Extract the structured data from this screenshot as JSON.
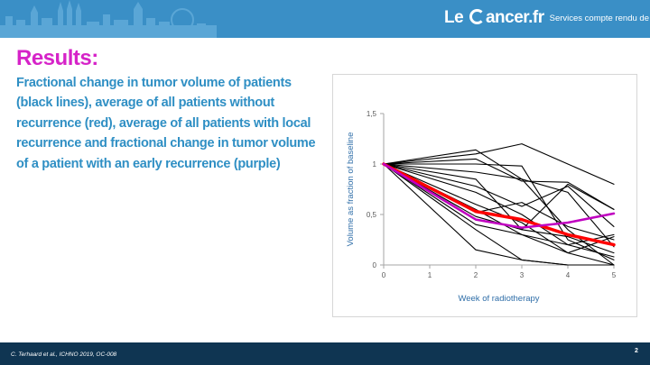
{
  "header": {
    "logo_left": "Le ",
    "logo_right": "ancer.fr",
    "tagline": "Services compte rendu de congrès",
    "accent_color": "#3a8fc6"
  },
  "slide": {
    "title": "Results:",
    "description": "Fractional change in tumor volume of patients (black lines), average of all patients without recurrence (red), average of all patients with local recurrence and fractional change in tumor volume of a patient with an early recurrence (purple)",
    "title_color": "#d623c8",
    "text_color": "#2f8fc4"
  },
  "footer": {
    "citation": "C. Terhaard et al., ICHNO 2019, OC-008",
    "page_number": "2"
  },
  "chart_data": {
    "type": "line",
    "xlabel": "Week of radiotherapy",
    "ylabel": "Volume as fraction of baseline",
    "xlim": [
      0,
      5
    ],
    "ylim": [
      0,
      1.5
    ],
    "x_ticks": [
      "0",
      "1",
      "2",
      "3",
      "4",
      "5"
    ],
    "y_ticks": [
      "0",
      "0,5",
      "1",
      "1,5"
    ],
    "grid": false,
    "series": [
      {
        "color": "#000000",
        "points": [
          [
            0,
            1.0
          ],
          [
            2,
            1.14
          ],
          [
            3,
            0.85
          ],
          [
            4,
            0.35
          ],
          [
            5,
            0.0
          ]
        ]
      },
      {
        "color": "#000000",
        "points": [
          [
            0,
            1.0
          ],
          [
            2,
            1.1
          ],
          [
            3,
            1.2
          ],
          [
            4,
            1.0
          ],
          [
            5,
            0.8
          ]
        ]
      },
      {
        "color": "#000000",
        "points": [
          [
            0,
            1.0
          ],
          [
            2,
            1.05
          ],
          [
            3,
            0.83
          ],
          [
            4,
            0.82
          ],
          [
            5,
            0.55
          ]
        ]
      },
      {
        "color": "#000000",
        "points": [
          [
            0,
            1.0
          ],
          [
            2,
            1.0
          ],
          [
            3,
            0.98
          ],
          [
            4,
            0.25
          ],
          [
            5,
            0.05
          ]
        ]
      },
      {
        "color": "#000000",
        "points": [
          [
            0,
            1.0
          ],
          [
            2,
            0.92
          ],
          [
            3,
            0.85
          ],
          [
            4,
            0.72
          ],
          [
            5,
            0.18
          ]
        ]
      },
      {
        "color": "#000000",
        "points": [
          [
            0,
            1.0
          ],
          [
            2,
            0.85
          ],
          [
            3,
            0.35
          ],
          [
            4,
            0.8
          ],
          [
            5,
            0.55
          ]
        ]
      },
      {
        "color": "#000000",
        "points": [
          [
            0,
            1.0
          ],
          [
            2,
            0.78
          ],
          [
            3,
            0.58
          ],
          [
            4,
            0.78
          ],
          [
            5,
            0.38
          ]
        ]
      },
      {
        "color": "#000000",
        "points": [
          [
            0,
            1.0
          ],
          [
            2,
            0.72
          ],
          [
            3,
            0.5
          ],
          [
            4,
            0.2
          ],
          [
            5,
            0.3
          ]
        ]
      },
      {
        "color": "#000000",
        "points": [
          [
            0,
            1.0
          ],
          [
            2,
            0.6
          ],
          [
            3,
            0.42
          ],
          [
            4,
            0.12
          ],
          [
            5,
            0.0
          ]
        ]
      },
      {
        "color": "#000000",
        "points": [
          [
            0,
            1.0
          ],
          [
            2,
            0.52
          ],
          [
            3,
            0.62
          ],
          [
            4,
            0.38
          ],
          [
            5,
            0.25
          ]
        ]
      },
      {
        "color": "#000000",
        "points": [
          [
            0,
            1.0
          ],
          [
            2,
            0.48
          ],
          [
            3,
            0.35
          ],
          [
            4,
            0.28
          ],
          [
            5,
            0.12
          ]
        ]
      },
      {
        "color": "#000000",
        "points": [
          [
            0,
            1.0
          ],
          [
            2,
            0.4
          ],
          [
            3,
            0.3
          ],
          [
            4,
            0.2
          ],
          [
            5,
            0.08
          ]
        ]
      },
      {
        "color": "#000000",
        "points": [
          [
            0,
            1.0
          ],
          [
            2,
            0.35
          ],
          [
            3,
            0.05
          ],
          [
            4,
            0.0
          ],
          [
            5,
            0.0
          ]
        ]
      },
      {
        "color": "#000000",
        "points": [
          [
            0,
            1.0
          ],
          [
            2,
            0.15
          ],
          [
            3,
            0.05
          ],
          [
            4,
            0.0
          ],
          [
            5,
            0.0
          ]
        ]
      },
      {
        "color": "#000000",
        "points": [
          [
            0,
            1.0
          ],
          [
            2,
            0.55
          ],
          [
            3,
            0.3
          ],
          [
            4,
            0.12
          ],
          [
            5,
            0.28
          ]
        ]
      },
      {
        "color": "#ff0000",
        "width": 3.5,
        "points": [
          [
            0,
            1.0
          ],
          [
            2,
            0.53
          ],
          [
            3,
            0.45
          ],
          [
            4,
            0.3
          ],
          [
            5,
            0.2
          ]
        ]
      },
      {
        "color": "#c000c0",
        "width": 2.5,
        "points": [
          [
            0,
            1.0
          ],
          [
            2,
            0.45
          ],
          [
            3,
            0.37
          ],
          [
            4,
            0.42
          ],
          [
            5,
            0.51
          ]
        ]
      }
    ]
  }
}
